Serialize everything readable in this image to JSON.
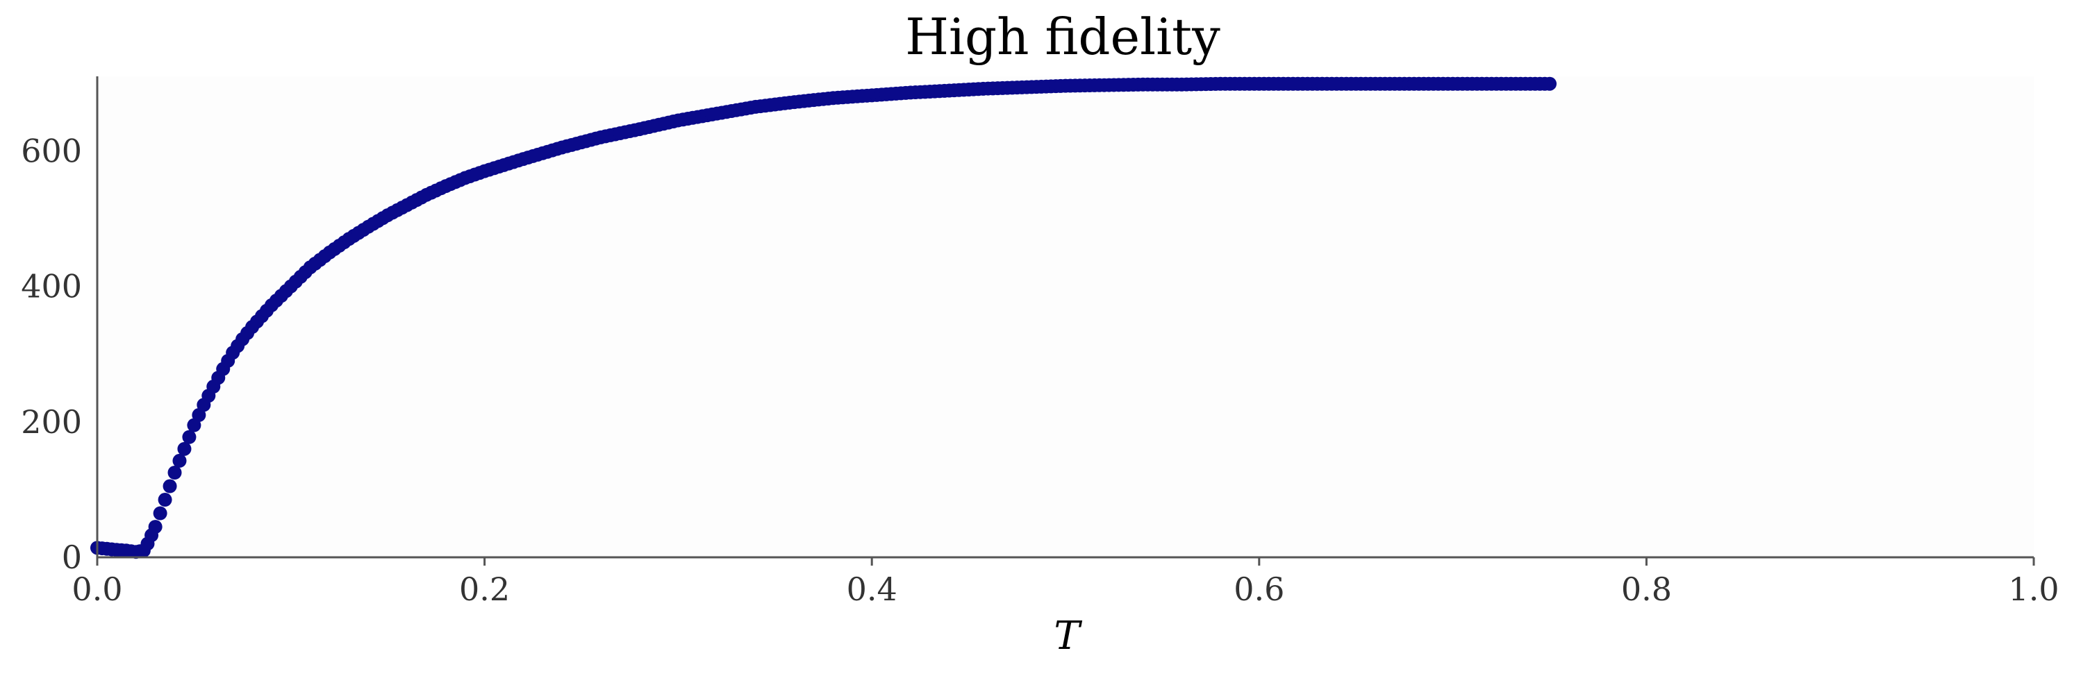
{
  "chart_data": {
    "type": "scatter",
    "title": "High fidelity",
    "xlabel": "T",
    "ylabel": "",
    "xlim": [
      0.0,
      1.0
    ],
    "ylim": [
      0,
      710
    ],
    "xticks": [
      0.0,
      0.2,
      0.4,
      0.6,
      0.8,
      1.0
    ],
    "xtick_labels": [
      "0.0",
      "0.2",
      "0.4",
      "0.6",
      "0.8",
      "1.0"
    ],
    "yticks": [
      0,
      200,
      400,
      600
    ],
    "ytick_labels": [
      "0",
      "200",
      "400",
      "600"
    ],
    "grid": false,
    "legend": "none",
    "colors": {
      "marker": "#0a0a8a",
      "plot_background": "#fdfdfd",
      "axis": "#555555"
    },
    "series": [
      {
        "x": [
          0.0,
          0.01,
          0.015,
          0.02,
          0.024,
          0.026,
          0.03,
          0.035,
          0.04,
          0.045,
          0.05,
          0.055,
          0.06,
          0.065,
          0.07,
          0.075,
          0.08,
          0.09,
          0.1,
          0.11,
          0.12,
          0.13,
          0.14,
          0.15,
          0.16,
          0.17,
          0.18,
          0.19,
          0.2,
          0.22,
          0.24,
          0.26,
          0.28,
          0.3,
          0.32,
          0.34,
          0.36,
          0.38,
          0.4,
          0.42,
          0.44,
          0.46,
          0.48,
          0.5,
          0.52,
          0.54,
          0.56,
          0.58,
          0.6,
          0.62,
          0.64,
          0.66,
          0.68,
          0.7,
          0.72,
          0.74,
          0.75
        ],
        "y": [
          14,
          11,
          10,
          8,
          10,
          20,
          45,
          85,
          125,
          160,
          195,
          225,
          252,
          278,
          302,
          322,
          340,
          372,
          400,
          428,
          450,
          470,
          488,
          505,
          520,
          535,
          548,
          560,
          570,
          588,
          605,
          620,
          632,
          645,
          655,
          665,
          672,
          678,
          682,
          686,
          689,
          692,
          694,
          696,
          697,
          698,
          698,
          699,
          699,
          699,
          699,
          699,
          699,
          699,
          699,
          699,
          699
        ]
      }
    ]
  }
}
